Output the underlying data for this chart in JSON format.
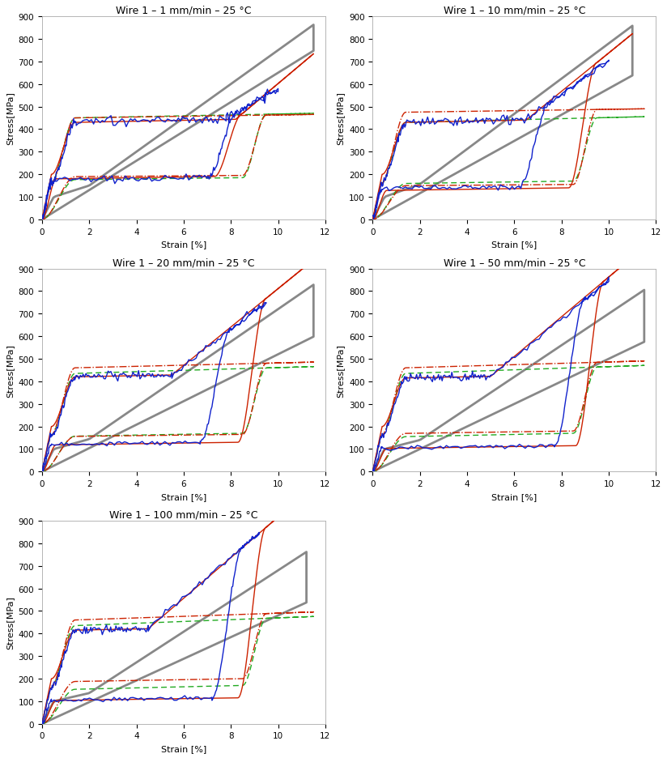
{
  "titles": [
    "Wire 1 – 1 mm/min – 25 °C",
    "Wire 1 – 10 mm/min – 25 °C",
    "Wire 1 – 20 mm/min – 25 °C",
    "Wire 1 – 50 mm/min – 25 °C",
    "Wire 1 – 100 mm/min – 25 °C"
  ],
  "xlabel": "Strain [%]",
  "ylabel": "Stress[MPa]",
  "xlim": [
    0,
    12
  ],
  "ylim": [
    0,
    900
  ],
  "yticks": [
    0,
    100,
    200,
    300,
    400,
    500,
    600,
    700,
    800,
    900
  ],
  "xticks": [
    0,
    2,
    4,
    6,
    8,
    10,
    12
  ],
  "speeds": [
    1,
    10,
    20,
    50,
    100
  ],
  "col_has_ylabel": [
    true,
    true,
    true,
    true,
    true
  ],
  "params": {
    "1": {
      "exp_plateau_up": 430,
      "exp_plateau_dn": 185,
      "exp_max_strain": 10.0,
      "exp_unload_end": 8.3,
      "exp_plateau_end": 7.8,
      "exp_upper_slope": 60,
      "exp_noise": 12,
      "ka_plateau_up": 430,
      "ka_plateau_dn": 190,
      "ka_max_strain": 11.5,
      "ka_upper_slope": 88,
      "ka_plateau_end": 8.2,
      "ka_unload_start": 8.5,
      "iso_plateau_up": 450,
      "iso_plateau_dn": 195,
      "iso_slope": 1.5,
      "afd_plateau_up": 450,
      "afd_plateau_dn": 185,
      "afd_slope": 2.0,
      "gray_load_slope": 75,
      "gray_unload_slope": 65,
      "gray_max": 11.5
    },
    "10": {
      "exp_plateau_up": 430,
      "exp_plateau_dn": 145,
      "exp_max_strain": 10.0,
      "exp_unload_end": 7.5,
      "exp_plateau_end": 6.5,
      "exp_upper_slope": 75,
      "exp_noise": 10,
      "ka_plateau_up": 430,
      "ka_plateau_dn": 140,
      "ka_max_strain": 11.0,
      "ka_upper_slope": 85,
      "ka_plateau_end": 6.5,
      "ka_unload_start": 9.5,
      "iso_plateau_up": 475,
      "iso_plateau_dn": 155,
      "iso_slope": 1.5,
      "afd_plateau_up": 430,
      "afd_plateau_dn": 170,
      "afd_slope": 2.5,
      "gray_load_slope": 78,
      "gray_unload_slope": 58,
      "gray_max": 11.0
    },
    "20": {
      "exp_plateau_up": 420,
      "exp_plateau_dn": 130,
      "exp_max_strain": 9.5,
      "exp_unload_end": 8.0,
      "exp_plateau_end": 5.5,
      "exp_upper_slope": 80,
      "exp_noise": 8,
      "ka_plateau_up": 420,
      "ka_plateau_dn": 130,
      "ka_max_strain": 11.5,
      "ka_upper_slope": 85,
      "ka_plateau_end": 5.5,
      "ka_unload_start": 9.5,
      "iso_plateau_up": 460,
      "iso_plateau_dn": 165,
      "iso_slope": 2.5,
      "afd_plateau_up": 435,
      "afd_plateau_dn": 170,
      "afd_slope": 3.0,
      "gray_load_slope": 72,
      "gray_unload_slope": 52,
      "gray_max": 11.5
    },
    "50": {
      "exp_plateau_up": 415,
      "exp_plateau_dn": 115,
      "exp_max_strain": 10.0,
      "exp_unload_end": 9.0,
      "exp_plateau_end": 5.0,
      "exp_upper_slope": 85,
      "exp_noise": 8,
      "ka_plateau_up": 415,
      "ka_plateau_dn": 115,
      "ka_max_strain": 11.5,
      "ka_upper_slope": 88,
      "ka_plateau_end": 5.0,
      "ka_unload_start": 9.8,
      "iso_plateau_up": 460,
      "iso_plateau_dn": 180,
      "iso_slope": 3.0,
      "afd_plateau_up": 435,
      "afd_plateau_dn": 170,
      "afd_slope": 3.5,
      "gray_load_slope": 70,
      "gray_unload_slope": 50,
      "gray_max": 11.5
    },
    "100": {
      "exp_plateau_up": 415,
      "exp_plateau_dn": 115,
      "exp_max_strain": 9.2,
      "exp_unload_end": 8.5,
      "exp_plateau_end": 4.5,
      "exp_upper_slope": 90,
      "exp_noise": 8,
      "ka_plateau_up": 415,
      "ka_plateau_dn": 115,
      "ka_max_strain": 11.2,
      "ka_upper_slope": 90,
      "ka_plateau_end": 4.5,
      "ka_unload_start": 9.5,
      "iso_plateau_up": 460,
      "iso_plateau_dn": 200,
      "iso_slope": 3.5,
      "afd_plateau_up": 435,
      "afd_plateau_dn": 170,
      "afd_slope": 4.0,
      "gray_load_slope": 68,
      "gray_unload_slope": 48,
      "gray_max": 11.2
    }
  }
}
